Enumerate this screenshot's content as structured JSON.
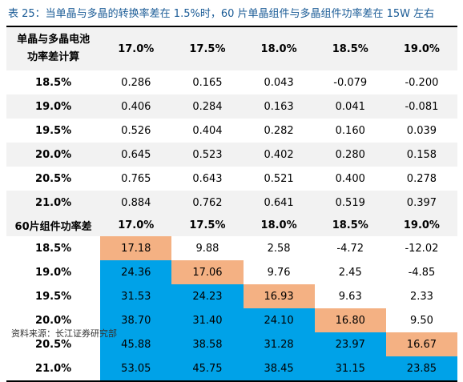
{
  "title": "表 25：当单晶与多晶的转换率差在 1.5%时，60 片单晶组件与多晶组件功率差在 15W 左右",
  "section1": {
    "corner_label_line1": "单晶与多晶电池",
    "corner_label_line2": "功率差计算",
    "columns": [
      "17.0%",
      "17.5%",
      "18.0%",
      "18.5%",
      "19.0%"
    ],
    "rows": [
      {
        "label": "18.5%",
        "values": [
          "0.286",
          "0.165",
          "0.043",
          "-0.079",
          "-0.200"
        ]
      },
      {
        "label": "19.0%",
        "values": [
          "0.406",
          "0.284",
          "0.163",
          "0.041",
          "-0.081"
        ]
      },
      {
        "label": "19.5%",
        "values": [
          "0.526",
          "0.404",
          "0.282",
          "0.160",
          "0.039"
        ]
      },
      {
        "label": "20.0%",
        "values": [
          "0.645",
          "0.523",
          "0.402",
          "0.280",
          "0.158"
        ]
      },
      {
        "label": "20.5%",
        "values": [
          "0.765",
          "0.643",
          "0.521",
          "0.400",
          "0.278"
        ]
      },
      {
        "label": "21.0%",
        "values": [
          "0.884",
          "0.762",
          "0.641",
          "0.519",
          "0.397"
        ]
      }
    ]
  },
  "section2": {
    "corner_label": "60片组件功率差",
    "columns": [
      "17.0%",
      "17.5%",
      "18.0%",
      "18.5%",
      "19.0%"
    ],
    "rows": [
      {
        "label": "18.5%",
        "values": [
          "17.18",
          "9.88",
          "2.58",
          "-4.72",
          "-12.02"
        ],
        "highlight": [
          "orange",
          "",
          "",
          "",
          ""
        ]
      },
      {
        "label": "19.0%",
        "values": [
          "24.36",
          "17.06",
          "9.76",
          "2.45",
          "-4.85"
        ],
        "highlight": [
          "blue",
          "orange",
          "",
          "",
          ""
        ]
      },
      {
        "label": "19.5%",
        "values": [
          "31.53",
          "24.23",
          "16.93",
          "9.63",
          "2.33"
        ],
        "highlight": [
          "blue",
          "blue",
          "orange",
          "",
          ""
        ]
      },
      {
        "label": "20.0%",
        "values": [
          "38.70",
          "31.40",
          "24.10",
          "16.80",
          "9.50"
        ],
        "highlight": [
          "blue",
          "blue",
          "blue",
          "orange",
          ""
        ]
      },
      {
        "label": "20.5%",
        "values": [
          "45.88",
          "38.58",
          "31.28",
          "23.97",
          "16.67"
        ],
        "highlight": [
          "blue",
          "blue",
          "blue",
          "blue",
          "orange"
        ]
      },
      {
        "label": "21.0%",
        "values": [
          "53.05",
          "45.75",
          "38.45",
          "31.15",
          "23.85"
        ],
        "highlight": [
          "blue",
          "blue",
          "blue",
          "blue",
          "blue"
        ]
      }
    ]
  },
  "source": "资料来源：长江证券研究部",
  "colors": {
    "title": "#1a5b96",
    "band": "#f2f2f2",
    "orange": "#f4b183",
    "blue": "#00a2e8"
  }
}
